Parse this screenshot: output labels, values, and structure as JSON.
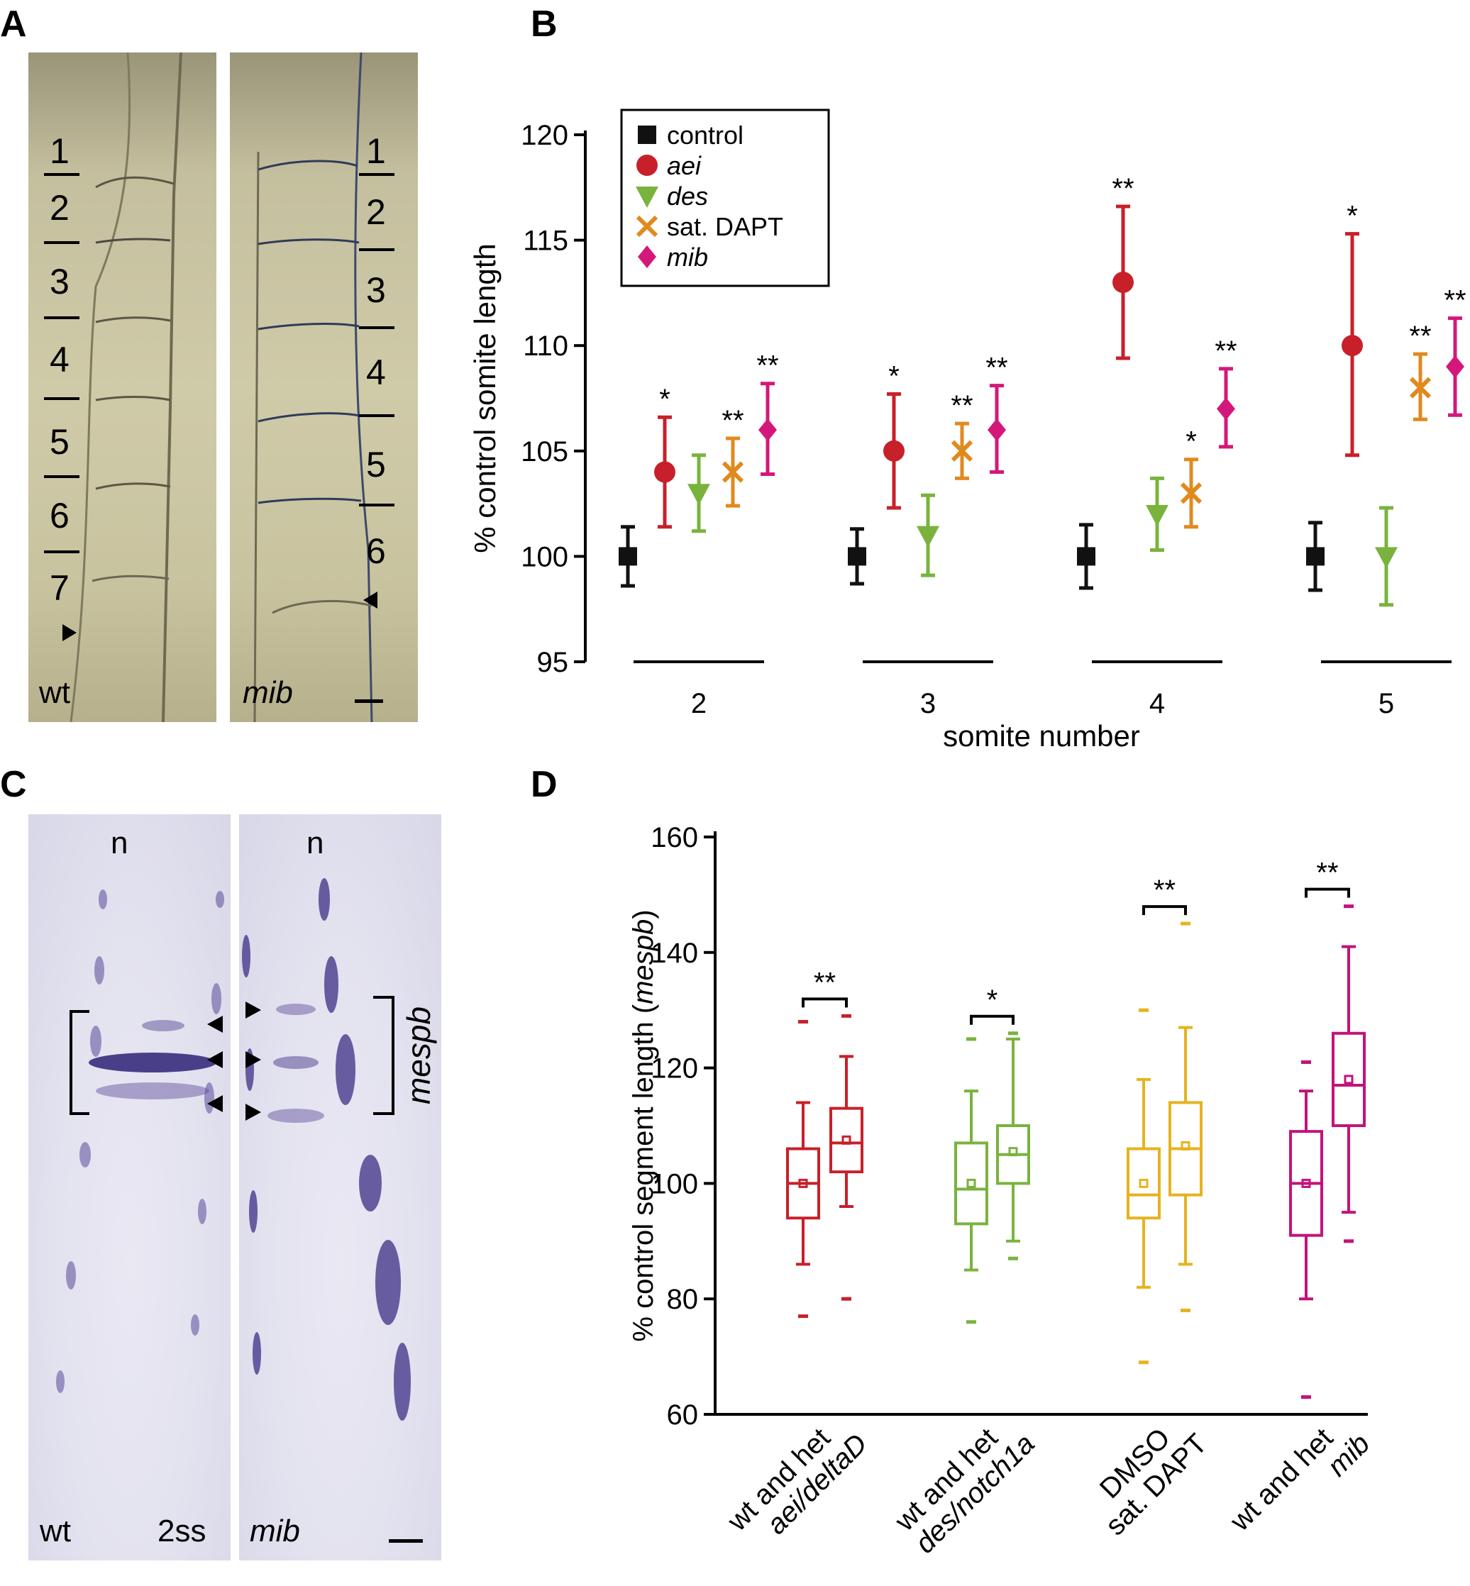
{
  "panels": {
    "a": {
      "letter": "A",
      "wt_numbers": [
        "1",
        "2",
        "3",
        "4",
        "5",
        "6",
        "7"
      ],
      "mib_numbers": [
        "1",
        "2",
        "3",
        "4",
        "5",
        "6"
      ],
      "wt_label": "wt",
      "mib_label": "mib"
    },
    "b": {
      "letter": "B"
    },
    "c": {
      "letter": "C",
      "wt_n": "n",
      "mib_n": "n",
      "wt_label": "wt",
      "stage_label": "2ss",
      "mib_label": "mib",
      "gene_label": "mespb"
    },
    "d": {
      "letter": "D"
    }
  },
  "chart_data": [
    {
      "id": "B",
      "type": "scatter",
      "xlabel": "somite number",
      "ylabel": "% control somite length",
      "ylim": [
        95,
        120
      ],
      "yticks": [
        95,
        100,
        105,
        110,
        115,
        120
      ],
      "categories": [
        "2",
        "3",
        "4",
        "5"
      ],
      "legend_position": "top-left",
      "series": [
        {
          "name": "control",
          "color": "#111111",
          "marker": "square",
          "italic": false,
          "points": [
            {
              "cat": "2",
              "y": 100,
              "lo": 98.6,
              "hi": 101.4,
              "sig": ""
            },
            {
              "cat": "3",
              "y": 100,
              "lo": 98.7,
              "hi": 101.3,
              "sig": ""
            },
            {
              "cat": "4",
              "y": 100,
              "lo": 98.5,
              "hi": 101.5,
              "sig": ""
            },
            {
              "cat": "5",
              "y": 100,
              "lo": 98.4,
              "hi": 101.6,
              "sig": ""
            }
          ]
        },
        {
          "name": "aei",
          "color": "#c8202a",
          "marker": "circle",
          "italic": true,
          "points": [
            {
              "cat": "2",
              "y": 104,
              "lo": 101.4,
              "hi": 106.6,
              "sig": "*"
            },
            {
              "cat": "3",
              "y": 105,
              "lo": 102.3,
              "hi": 107.7,
              "sig": "*"
            },
            {
              "cat": "4",
              "y": 113,
              "lo": 109.4,
              "hi": 116.6,
              "sig": "**"
            },
            {
              "cat": "5",
              "y": 110,
              "lo": 104.8,
              "hi": 115.3,
              "sig": "*"
            }
          ]
        },
        {
          "name": "des",
          "color": "#79b33d",
          "marker": "triangle",
          "italic": true,
          "points": [
            {
              "cat": "2",
              "y": 103,
              "lo": 101.2,
              "hi": 104.8,
              "sig": ""
            },
            {
              "cat": "3",
              "y": 101,
              "lo": 99.1,
              "hi": 102.9,
              "sig": ""
            },
            {
              "cat": "4",
              "y": 102,
              "lo": 100.3,
              "hi": 103.7,
              "sig": ""
            },
            {
              "cat": "5",
              "y": 100,
              "lo": 97.7,
              "hi": 102.3,
              "sig": ""
            }
          ]
        },
        {
          "name": "sat. DAPT",
          "color": "#e08a1e",
          "marker": "x",
          "italic": false,
          "points": [
            {
              "cat": "2",
              "y": 104,
              "lo": 102.4,
              "hi": 105.6,
              "sig": "**"
            },
            {
              "cat": "3",
              "y": 105,
              "lo": 103.7,
              "hi": 106.3,
              "sig": "**"
            },
            {
              "cat": "4",
              "y": 103,
              "lo": 101.4,
              "hi": 104.6,
              "sig": "*"
            },
            {
              "cat": "5",
              "y": 108,
              "lo": 106.5,
              "hi": 109.6,
              "sig": "**"
            }
          ]
        },
        {
          "name": "mib",
          "color": "#d4187b",
          "marker": "diamond",
          "italic": true,
          "points": [
            {
              "cat": "2",
              "y": 106,
              "lo": 103.9,
              "hi": 108.2,
              "sig": "**"
            },
            {
              "cat": "3",
              "y": 106,
              "lo": 104.0,
              "hi": 108.1,
              "sig": "**"
            },
            {
              "cat": "4",
              "y": 107,
              "lo": 105.2,
              "hi": 108.9,
              "sig": "**"
            },
            {
              "cat": "5",
              "y": 109,
              "lo": 106.7,
              "hi": 111.3,
              "sig": "**"
            }
          ]
        }
      ]
    },
    {
      "id": "D",
      "type": "box",
      "ylabel_prefix": "% control segment length (",
      "ylabel_italic": "mespb",
      "ylabel_suffix": ")",
      "ylim": [
        60,
        160
      ],
      "yticks": [
        60,
        80,
        100,
        120,
        140,
        160
      ],
      "groups": [
        {
          "label_line1": "wt and het",
          "label_line2": "aei/deltaD",
          "line2_italic": true,
          "color": "#c8202a",
          "sig": "**",
          "boxes": [
            {
              "min": 77,
              "wlo": 86,
              "q1": 94,
              "median": 100,
              "q3": 106,
              "whi": 114,
              "max": 128,
              "mean": 100
            },
            {
              "min": 80,
              "wlo": 96,
              "q1": 102,
              "median": 107,
              "q3": 113,
              "whi": 122,
              "max": 129,
              "mean": 107.5
            }
          ]
        },
        {
          "label_line1": "wt and het",
          "label_line2": "des/notch1a",
          "line2_italic": true,
          "color": "#79b33d",
          "sig": "*",
          "boxes": [
            {
              "min": 76,
              "wlo": 85,
              "q1": 93,
              "median": 99,
              "q3": 107,
              "whi": 116,
              "max": 125,
              "mean": 100
            },
            {
              "min": 87,
              "wlo": 90,
              "q1": 100,
              "median": 105,
              "q3": 110,
              "whi": 125,
              "max": 126,
              "mean": 105.5
            }
          ]
        },
        {
          "label_line1": "DMSO",
          "label_line2": "sat. DAPT",
          "line2_italic": false,
          "color": "#e6b31f",
          "sig": "**",
          "boxes": [
            {
              "min": 69,
              "wlo": 82,
              "q1": 94,
              "median": 98,
              "q3": 106,
              "whi": 118,
              "max": 130,
              "mean": 100
            },
            {
              "min": 78,
              "wlo": 86,
              "q1": 98,
              "median": 106,
              "q3": 114,
              "whi": 127,
              "max": 145,
              "mean": 106.5
            }
          ]
        },
        {
          "label_line1": "wt and het",
          "label_line2": "mib",
          "line2_italic": true,
          "color": "#c4127a",
          "sig": "**",
          "boxes": [
            {
              "min": 63,
              "wlo": 80,
              "q1": 91,
              "median": 100,
              "q3": 109,
              "whi": 116,
              "max": 121,
              "mean": 100
            },
            {
              "min": 90,
              "wlo": 95,
              "q1": 110,
              "median": 117,
              "q3": 126,
              "whi": 141,
              "max": 148,
              "mean": 118
            }
          ]
        }
      ]
    }
  ]
}
